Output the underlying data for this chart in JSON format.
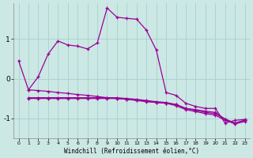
{
  "title": "",
  "xlabel": "Windchill (Refroidissement éolien,°C)",
  "bg_color": "#cce8e4",
  "grid_color": "#aad4cf",
  "line_color": "#990099",
  "xlim": [
    -0.5,
    23.5
  ],
  "ylim": [
    -1.5,
    1.9
  ],
  "yticks": [
    -1,
    0,
    1
  ],
  "xticks": [
    0,
    1,
    2,
    3,
    4,
    5,
    6,
    7,
    8,
    9,
    10,
    11,
    12,
    13,
    14,
    15,
    16,
    17,
    18,
    19,
    20,
    21,
    22,
    23
  ],
  "series1_x": [
    0,
    1,
    2,
    3,
    4,
    5,
    6,
    7,
    8,
    9,
    10,
    11,
    12,
    13,
    14,
    15,
    16,
    17,
    18,
    19,
    20,
    21,
    22,
    23
  ],
  "series1_y": [
    0.45,
    -0.28,
    0.05,
    0.62,
    0.95,
    0.85,
    0.82,
    0.75,
    0.9,
    1.78,
    1.55,
    1.52,
    1.5,
    1.22,
    0.72,
    -0.35,
    -0.42,
    -0.62,
    -0.7,
    -0.75,
    -0.75,
    -1.12,
    -1.05,
    -1.03
  ],
  "series2_x": [
    1,
    2,
    3,
    4,
    5,
    6,
    7,
    8,
    9,
    10,
    11,
    12,
    13,
    14,
    15,
    16,
    17,
    18,
    19,
    20,
    21,
    22,
    23
  ],
  "series2_y": [
    -0.28,
    -0.3,
    -0.32,
    -0.35,
    -0.37,
    -0.4,
    -0.42,
    -0.45,
    -0.48,
    -0.5,
    -0.52,
    -0.55,
    -0.58,
    -0.6,
    -0.62,
    -0.65,
    -0.75,
    -0.78,
    -0.82,
    -0.85,
    -1.02,
    -1.12,
    -1.05
  ],
  "series3_x": [
    1,
    2,
    3,
    4,
    5,
    6,
    7,
    8,
    9,
    10,
    11,
    12,
    13,
    14,
    15,
    16,
    17,
    18,
    19,
    20,
    21,
    22,
    23
  ],
  "series3_y": [
    -0.48,
    -0.48,
    -0.48,
    -0.48,
    -0.48,
    -0.48,
    -0.48,
    -0.48,
    -0.48,
    -0.48,
    -0.5,
    -0.52,
    -0.55,
    -0.58,
    -0.6,
    -0.65,
    -0.75,
    -0.8,
    -0.85,
    -0.88,
    -1.02,
    -1.12,
    -1.05
  ],
  "series4_x": [
    1,
    2,
    3,
    4,
    5,
    6,
    7,
    8,
    9,
    10,
    11,
    12,
    13,
    14,
    15,
    16,
    17,
    18,
    19,
    20,
    21,
    22,
    23
  ],
  "series4_y": [
    -0.5,
    -0.5,
    -0.5,
    -0.5,
    -0.5,
    -0.5,
    -0.5,
    -0.5,
    -0.5,
    -0.5,
    -0.52,
    -0.54,
    -0.57,
    -0.6,
    -0.62,
    -0.68,
    -0.78,
    -0.83,
    -0.88,
    -0.92,
    -1.05,
    -1.14,
    -1.08
  ]
}
